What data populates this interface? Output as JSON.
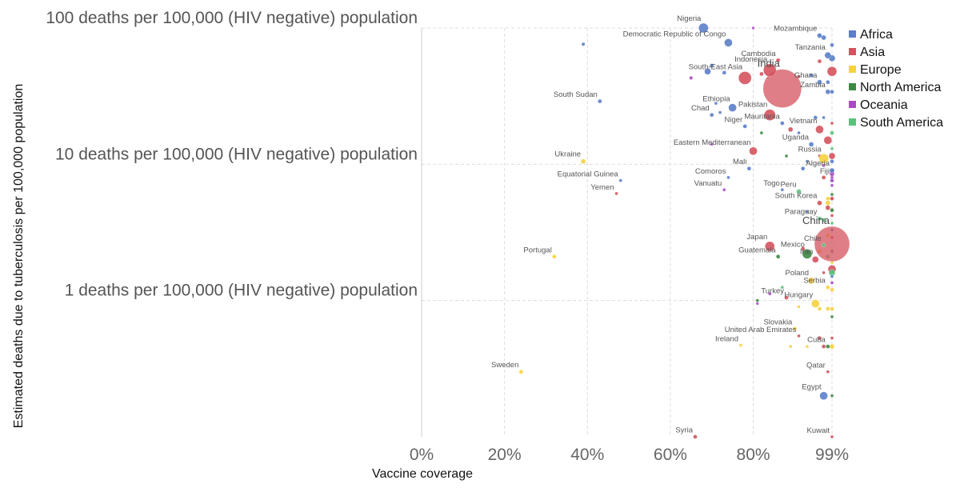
{
  "chart_data": {
    "type": "scatter",
    "xlabel": "Vaccine coverage",
    "ylabel": "Estimated deaths due to tuberculosis per 100,000 population",
    "x_scale": "linear",
    "y_scale": "log",
    "xlim": [
      0,
      99
    ],
    "ylim": [
      0.1,
      100
    ],
    "x_ticks": [
      {
        "value": 0,
        "label": "0%"
      },
      {
        "value": 20,
        "label": "20%"
      },
      {
        "value": 40,
        "label": "40%"
      },
      {
        "value": 60,
        "label": "60%"
      },
      {
        "value": 80,
        "label": "80%"
      },
      {
        "value": 99,
        "label": "99%"
      }
    ],
    "y_ticks": [
      {
        "value": 100,
        "label": "100 deaths per 100,000 (HIV negative) population"
      },
      {
        "value": 10,
        "label": "10 deaths per 100,000 (HIV negative) population"
      },
      {
        "value": 1,
        "label": "1 deaths per 100,000 (HIV negative) population"
      }
    ],
    "grid": true,
    "legend_position": "right",
    "regions": [
      {
        "name": "Africa",
        "color": "#5b7ec9"
      },
      {
        "name": "Asia",
        "color": "#d4535e"
      },
      {
        "name": "Europe",
        "color": "#f7d23e"
      },
      {
        "name": "North America",
        "color": "#3c8a42"
      },
      {
        "name": "Oceania",
        "color": "#a94ac4"
      },
      {
        "name": "South America",
        "color": "#5cc17a"
      }
    ],
    "labeled_points": [
      {
        "name": "Nigeria",
        "x": 68,
        "y": 100,
        "region": "Africa",
        "size": 6
      },
      {
        "name": "Mozambique",
        "x": 96,
        "y": 88,
        "region": "Africa",
        "size": 3
      },
      {
        "name": "Democratic Republic of Congo",
        "x": 74,
        "y": 78,
        "region": "Africa",
        "size": 5
      },
      {
        "name": "Tanzania",
        "x": 98,
        "y": 63,
        "region": "Africa",
        "size": 4
      },
      {
        "name": "Cambodia",
        "x": 86,
        "y": 58,
        "region": "Asia",
        "size": 2.5
      },
      {
        "name": "India",
        "x": 87,
        "y": 36,
        "region": "Asia",
        "size": 24
      },
      {
        "name": "Indonesia",
        "x": 84,
        "y": 49,
        "region": "Asia",
        "size": 8
      },
      {
        "name": "South-East Asia",
        "x": 78,
        "y": 43,
        "region": "Asia",
        "size": 8
      },
      {
        "name": "Ghana",
        "x": 96,
        "y": 40,
        "region": "Africa",
        "size": 3
      },
      {
        "name": "Zambia",
        "x": 98,
        "y": 34,
        "region": "Africa",
        "size": 3
      },
      {
        "name": "South Sudan",
        "x": 43,
        "y": 29,
        "region": "Africa",
        "size": 2.5
      },
      {
        "name": "Ethiopia",
        "x": 75,
        "y": 26,
        "region": "Africa",
        "size": 5
      },
      {
        "name": "Chad",
        "x": 70,
        "y": 23,
        "region": "Africa",
        "size": 2.5
      },
      {
        "name": "Pakistan",
        "x": 84,
        "y": 23,
        "region": "Asia",
        "size": 7
      },
      {
        "name": "Mauritania",
        "x": 87,
        "y": 20,
        "region": "Africa",
        "size": 2.5
      },
      {
        "name": "Niger",
        "x": 78,
        "y": 19,
        "region": "Africa",
        "size": 2.5
      },
      {
        "name": "Vietnam",
        "x": 96,
        "y": 18,
        "region": "Asia",
        "size": 5
      },
      {
        "name": "Uganda",
        "x": 94,
        "y": 14,
        "region": "Africa",
        "size": 3
      },
      {
        "name": "Eastern Mediterranean",
        "x": 80,
        "y": 12.5,
        "region": "Asia",
        "size": 5
      },
      {
        "name": "Russia",
        "x": 97,
        "y": 11,
        "region": "Europe",
        "size": 6
      },
      {
        "name": "Ukraine",
        "x": 39,
        "y": 10.5,
        "region": "Europe",
        "size": 3
      },
      {
        "name": "Mali",
        "x": 79,
        "y": 9.3,
        "region": "Africa",
        "size": 2.5
      },
      {
        "name": "Algeria",
        "x": 99,
        "y": 9,
        "region": "Africa",
        "size": 3
      },
      {
        "name": "Comoros",
        "x": 74,
        "y": 8,
        "region": "Africa",
        "size": 2
      },
      {
        "name": "Fiji",
        "x": 99,
        "y": 8,
        "region": "Oceania",
        "size": 2
      },
      {
        "name": "Equatorial Guinea",
        "x": 48,
        "y": 7.6,
        "region": "Africa",
        "size": 2
      },
      {
        "name": "Vanuatu",
        "x": 73,
        "y": 6.5,
        "region": "Oceania",
        "size": 2
      },
      {
        "name": "Togo",
        "x": 87,
        "y": 6.5,
        "region": "Africa",
        "size": 2
      },
      {
        "name": "Peru",
        "x": 91,
        "y": 6.3,
        "region": "South America",
        "size": 3
      },
      {
        "name": "Yemen",
        "x": 47,
        "y": 6.1,
        "region": "Asia",
        "size": 2
      },
      {
        "name": "South Korea",
        "x": 96,
        "y": 5.2,
        "region": "Asia",
        "size": 3
      },
      {
        "name": "Paraguay",
        "x": 96,
        "y": 4.0,
        "region": "South America",
        "size": 2.5
      },
      {
        "name": "China",
        "x": 99,
        "y": 2.6,
        "region": "Asia",
        "size": 22
      },
      {
        "name": "Japan",
        "x": 84,
        "y": 2.5,
        "region": "Asia",
        "size": 6
      },
      {
        "name": "Chile",
        "x": 97,
        "y": 2.55,
        "region": "South America",
        "size": 2.5
      },
      {
        "name": "Portugal",
        "x": 32,
        "y": 2.1,
        "region": "Europe",
        "size": 2.5
      },
      {
        "name": "Guatemala",
        "x": 86,
        "y": 2.1,
        "region": "North America",
        "size": 2.5
      },
      {
        "name": "Mexico",
        "x": 93,
        "y": 2.2,
        "region": "North America",
        "size": 6
      },
      {
        "name": "Iran",
        "x": 95,
        "y": 2.0,
        "region": "Asia",
        "size": 4
      },
      {
        "name": "Poland",
        "x": 94,
        "y": 1.4,
        "region": "Europe",
        "size": 4
      },
      {
        "name": "Serbia",
        "x": 98,
        "y": 1.25,
        "region": "Europe",
        "size": 2.5
      },
      {
        "name": "Turkey",
        "x": 88,
        "y": 1.05,
        "region": "Asia",
        "size": 2.5
      },
      {
        "name": "Hungary",
        "x": 95,
        "y": 0.95,
        "region": "Europe",
        "size": 5
      },
      {
        "name": "Slovakia",
        "x": 90,
        "y": 0.62,
        "region": "Europe",
        "size": 2.5
      },
      {
        "name": "United Arab Emirates",
        "x": 91,
        "y": 0.55,
        "region": "Asia",
        "size": 2
      },
      {
        "name": "Ireland",
        "x": 77,
        "y": 0.47,
        "region": "Europe",
        "size": 2
      },
      {
        "name": "Cuba",
        "x": 98,
        "y": 0.46,
        "region": "North America",
        "size": 2.5
      },
      {
        "name": "Sweden",
        "x": 24,
        "y": 0.3,
        "region": "Europe",
        "size": 2.5
      },
      {
        "name": "Qatar",
        "x": 98,
        "y": 0.3,
        "region": "Asia",
        "size": 2
      },
      {
        "name": "Egypt",
        "x": 97,
        "y": 0.2,
        "region": "Africa",
        "size": 5
      },
      {
        "name": "Syria",
        "x": 66,
        "y": 0.1,
        "region": "Asia",
        "size": 2.5
      },
      {
        "name": "Kuwait",
        "x": 99,
        "y": 0.1,
        "region": "Asia",
        "size": 2
      }
    ],
    "unlabeled_points": [
      {
        "x": 80,
        "y": 100,
        "region": "Oceania",
        "size": 1.8
      },
      {
        "x": 39,
        "y": 76,
        "region": "Africa",
        "size": 2.2
      },
      {
        "x": 97,
        "y": 85,
        "region": "Africa",
        "size": 3
      },
      {
        "x": 99,
        "y": 75,
        "region": "Africa",
        "size": 2.5
      },
      {
        "x": 99,
        "y": 60,
        "region": "Africa",
        "size": 4
      },
      {
        "x": 96,
        "y": 57,
        "region": "Asia",
        "size": 2.5
      },
      {
        "x": 70,
        "y": 53,
        "region": "Africa",
        "size": 2.5
      },
      {
        "x": 69,
        "y": 48,
        "region": "Africa",
        "size": 4
      },
      {
        "x": 65,
        "y": 43,
        "region": "Oceania",
        "size": 2.2
      },
      {
        "x": 73,
        "y": 47,
        "region": "Africa",
        "size": 2.5
      },
      {
        "x": 82,
        "y": 46,
        "region": "Asia",
        "size": 2.5
      },
      {
        "x": 99,
        "y": 48,
        "region": "Asia",
        "size": 6
      },
      {
        "x": 94,
        "y": 45,
        "region": "Africa",
        "size": 2.5
      },
      {
        "x": 91,
        "y": 44,
        "region": "Asia",
        "size": 2
      },
      {
        "x": 98,
        "y": 40,
        "region": "Africa",
        "size": 2.5
      },
      {
        "x": 99,
        "y": 34,
        "region": "Africa",
        "size": 2.5
      },
      {
        "x": 71,
        "y": 28,
        "region": "Africa",
        "size": 2
      },
      {
        "x": 72,
        "y": 24,
        "region": "Africa",
        "size": 2
      },
      {
        "x": 95,
        "y": 22,
        "region": "Africa",
        "size": 2.5
      },
      {
        "x": 97,
        "y": 22,
        "region": "Africa",
        "size": 2
      },
      {
        "x": 99,
        "y": 20,
        "region": "Asia",
        "size": 2
      },
      {
        "x": 89,
        "y": 18,
        "region": "Asia",
        "size": 3
      },
      {
        "x": 91,
        "y": 17,
        "region": "Africa",
        "size": 2
      },
      {
        "x": 82,
        "y": 17,
        "region": "North America",
        "size": 2
      },
      {
        "x": 99,
        "y": 17,
        "region": "South America",
        "size": 2.5
      },
      {
        "x": 98,
        "y": 15,
        "region": "Asia",
        "size": 5
      },
      {
        "x": 99,
        "y": 13,
        "region": "South America",
        "size": 2
      },
      {
        "x": 70,
        "y": 14,
        "region": "Oceania",
        "size": 1.8
      },
      {
        "x": 88,
        "y": 11.5,
        "region": "North America",
        "size": 2
      },
      {
        "x": 93,
        "y": 10.5,
        "region": "Africa",
        "size": 2
      },
      {
        "x": 96,
        "y": 11.5,
        "region": "Asia",
        "size": 2
      },
      {
        "x": 99,
        "y": 11.5,
        "region": "Asia",
        "size": 4
      },
      {
        "x": 99,
        "y": 10.5,
        "region": "Africa",
        "size": 2.5
      },
      {
        "x": 97,
        "y": 9.8,
        "region": "Oceania",
        "size": 2
      },
      {
        "x": 92,
        "y": 9.3,
        "region": "Africa",
        "size": 2.5
      },
      {
        "x": 99,
        "y": 9.0,
        "region": "Oceania",
        "size": 2.5
      },
      {
        "x": 99,
        "y": 8.5,
        "region": "Oceania",
        "size": 3
      },
      {
        "x": 97,
        "y": 8.0,
        "region": "Asia",
        "size": 2.5
      },
      {
        "x": 99,
        "y": 7.6,
        "region": "Oceania",
        "size": 2.5
      },
      {
        "x": 99,
        "y": 7.0,
        "region": "Oceania",
        "size": 2
      },
      {
        "x": 99,
        "y": 6.0,
        "region": "North America",
        "size": 2
      },
      {
        "x": 98,
        "y": 5.6,
        "region": "Europe",
        "size": 2.5
      },
      {
        "x": 99,
        "y": 5.6,
        "region": "Asia",
        "size": 2.5
      },
      {
        "x": 98,
        "y": 5.2,
        "region": "Europe",
        "size": 3
      },
      {
        "x": 98,
        "y": 4.8,
        "region": "Asia",
        "size": 3
      },
      {
        "x": 99,
        "y": 4.6,
        "region": "North America",
        "size": 2.5
      },
      {
        "x": 93,
        "y": 4.5,
        "region": "Africa",
        "size": 2
      },
      {
        "x": 99,
        "y": 4.2,
        "region": "Asia",
        "size": 2
      },
      {
        "x": 97,
        "y": 3.9,
        "region": "South America",
        "size": 2.5
      },
      {
        "x": 99,
        "y": 3.7,
        "region": "South America",
        "size": 2
      },
      {
        "x": 99,
        "y": 3.3,
        "region": "Africa",
        "size": 2
      },
      {
        "x": 98,
        "y": 3.0,
        "region": "Europe",
        "size": 2.5
      },
      {
        "x": 99,
        "y": 2.9,
        "region": "Asia",
        "size": 2
      },
      {
        "x": 96,
        "y": 2.3,
        "region": "Europe",
        "size": 2.5
      },
      {
        "x": 92,
        "y": 2.4,
        "region": "Asia",
        "size": 2.5
      },
      {
        "x": 99,
        "y": 2.3,
        "region": "North America",
        "size": 2
      },
      {
        "x": 98,
        "y": 2.1,
        "region": "South America",
        "size": 2.5
      },
      {
        "x": 99,
        "y": 1.9,
        "region": "Europe",
        "size": 2
      },
      {
        "x": 99,
        "y": 1.7,
        "region": "Asia",
        "size": 5
      },
      {
        "x": 99,
        "y": 1.6,
        "region": "South America",
        "size": 4
      },
      {
        "x": 97,
        "y": 1.6,
        "region": "Asia",
        "size": 2
      },
      {
        "x": 99,
        "y": 1.5,
        "region": "Africa",
        "size": 2
      },
      {
        "x": 99,
        "y": 1.35,
        "region": "Oceania",
        "size": 2
      },
      {
        "x": 99,
        "y": 1.2,
        "region": "Europe",
        "size": 2.5
      },
      {
        "x": 87,
        "y": 1.25,
        "region": "South America",
        "size": 2
      },
      {
        "x": 84,
        "y": 1.12,
        "region": "Oceania",
        "size": 2
      },
      {
        "x": 81,
        "y": 1.0,
        "region": "North America",
        "size": 2
      },
      {
        "x": 81,
        "y": 0.95,
        "region": "Oceania",
        "size": 1.8
      },
      {
        "x": 91,
        "y": 0.9,
        "region": "Europe",
        "size": 2
      },
      {
        "x": 96,
        "y": 0.87,
        "region": "Europe",
        "size": 2.5
      },
      {
        "x": 98,
        "y": 0.87,
        "region": "Europe",
        "size": 2.5
      },
      {
        "x": 99,
        "y": 0.87,
        "region": "Europe",
        "size": 2.5
      },
      {
        "x": 99,
        "y": 0.76,
        "region": "North America",
        "size": 2
      },
      {
        "x": 96,
        "y": 0.53,
        "region": "Asia",
        "size": 2.5
      },
      {
        "x": 99,
        "y": 0.53,
        "region": "Asia",
        "size": 2
      },
      {
        "x": 89,
        "y": 0.46,
        "region": "Europe",
        "size": 2
      },
      {
        "x": 93,
        "y": 0.46,
        "region": "Europe",
        "size": 2
      },
      {
        "x": 97,
        "y": 0.46,
        "region": "Asia",
        "size": 2.5
      },
      {
        "x": 99,
        "y": 0.46,
        "region": "Europe",
        "size": 3
      },
      {
        "x": 99,
        "y": 0.2,
        "region": "North America",
        "size": 2
      }
    ]
  }
}
